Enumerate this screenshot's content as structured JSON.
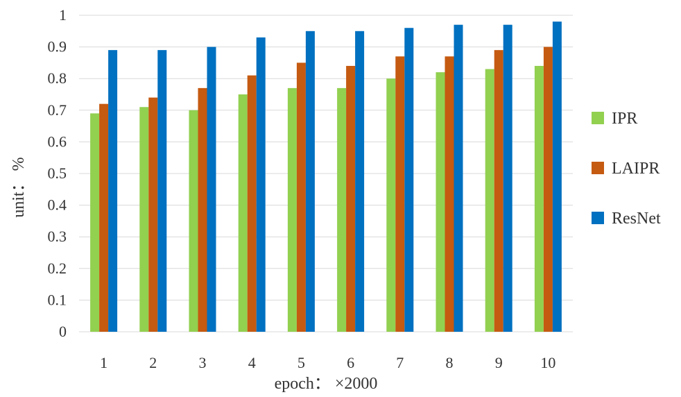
{
  "chart_data": {
    "type": "bar",
    "categories": [
      "1",
      "2",
      "3",
      "4",
      "5",
      "6",
      "7",
      "8",
      "9",
      "10"
    ],
    "series": [
      {
        "name": "IPR",
        "color": "#92D050",
        "values": [
          0.69,
          0.71,
          0.7,
          0.75,
          0.77,
          0.77,
          0.8,
          0.82,
          0.83,
          0.84
        ]
      },
      {
        "name": "LAIPR",
        "color": "#C55A11",
        "values": [
          0.72,
          0.74,
          0.77,
          0.81,
          0.85,
          0.84,
          0.87,
          0.87,
          0.89,
          0.9
        ]
      },
      {
        "name": "ResNet",
        "color": "#0070C0",
        "values": [
          0.89,
          0.89,
          0.9,
          0.93,
          0.95,
          0.95,
          0.96,
          0.97,
          0.97,
          0.98
        ]
      }
    ],
    "y_ticks": [
      "0",
      "0.1",
      "0.2",
      "0.3",
      "0.4",
      "0.5",
      "0.6",
      "0.7",
      "0.8",
      "0.9",
      "1"
    ],
    "xlabel": "epoch： ×2000",
    "ylabel": "unit： %",
    "ylim": [
      0,
      1
    ],
    "grid": true,
    "legend_position": "right",
    "gridline_color": "#D9D9D9"
  }
}
